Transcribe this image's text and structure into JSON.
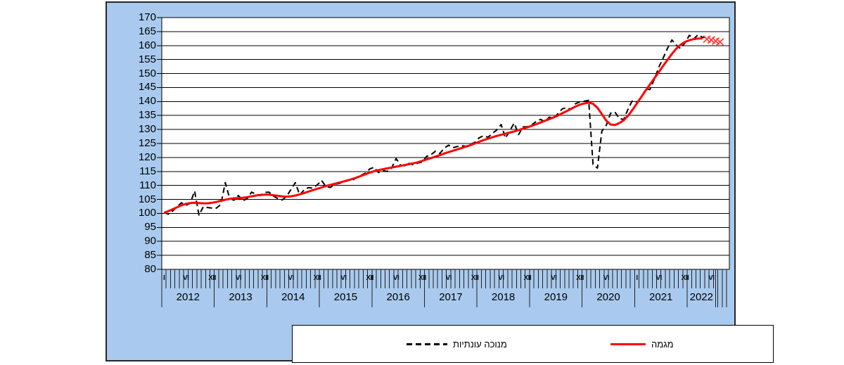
{
  "colors": {
    "chart_background": "#a9caee",
    "plot_background": "#ffffff",
    "grid": "#000000",
    "axis": "#000000",
    "seasonal_line": "#000000",
    "trend_line": "#ff0000",
    "forecast_marker": "#ff4040"
  },
  "legend": {
    "items": [
      {
        "label": "מנוכה עונתיות",
        "line_style": "dashed",
        "color": "#000000"
      },
      {
        "label": "מגמה",
        "line_style": "solid",
        "color": "#ff0000"
      }
    ]
  },
  "chart_data": {
    "type": "line",
    "title": "",
    "xlabel": "",
    "ylabel": "",
    "ylim": [
      80,
      170
    ],
    "ytick_step": 5,
    "grid": true,
    "y_tick_labels": [
      "170",
      "165",
      "160",
      "155",
      "150",
      "145",
      "140",
      "135",
      "130",
      "125",
      "120",
      "115",
      "110",
      "105",
      "100",
      "95",
      "90",
      "85",
      "80"
    ],
    "x_axis": {
      "unit": "month",
      "start": "I-2012",
      "month_tick_count": 130,
      "month_labels": [
        {
          "m": 0,
          "t": "I"
        },
        {
          "m": 5,
          "t": "VI"
        },
        {
          "m": 11,
          "t": "XII"
        },
        {
          "m": 17,
          "t": "VI"
        },
        {
          "m": 23,
          "t": "XII"
        },
        {
          "m": 29,
          "t": "VI"
        },
        {
          "m": 35,
          "t": "XII"
        },
        {
          "m": 41,
          "t": "VI"
        },
        {
          "m": 47,
          "t": "XII"
        },
        {
          "m": 53,
          "t": "VI"
        },
        {
          "m": 59,
          "t": "XII"
        },
        {
          "m": 65,
          "t": "VI"
        },
        {
          "m": 71,
          "t": "XII"
        },
        {
          "m": 77,
          "t": "VI"
        },
        {
          "m": 83,
          "t": "XII"
        },
        {
          "m": 89,
          "t": "VI"
        },
        {
          "m": 95,
          "t": "XII"
        },
        {
          "m": 101,
          "t": "VI"
        },
        {
          "m": 108,
          "t": "I"
        },
        {
          "m": 113,
          "t": "VI"
        },
        {
          "m": 119,
          "t": "XII"
        },
        {
          "m": 125,
          "t": "VI"
        }
      ],
      "year_bands": [
        {
          "label": "2012",
          "from": 0,
          "to": 12
        },
        {
          "label": "2013",
          "from": 12,
          "to": 24
        },
        {
          "label": "2014",
          "from": 24,
          "to": 36
        },
        {
          "label": "2015",
          "from": 36,
          "to": 48
        },
        {
          "label": "2016",
          "from": 48,
          "to": 60
        },
        {
          "label": "2017",
          "from": 60,
          "to": 72
        },
        {
          "label": "2018",
          "from": 72,
          "to": 84
        },
        {
          "label": "2019",
          "from": 84,
          "to": 96
        },
        {
          "label": "2020",
          "from": 96,
          "to": 108
        },
        {
          "label": "2021",
          "from": 108,
          "to": 120
        },
        {
          "label": "2022",
          "from": 120,
          "to": 126.5
        }
      ],
      "trailing_full_ticks": [
        127,
        128,
        129
      ]
    },
    "series": [
      {
        "name": "מנוכה עונתיות",
        "style": "dashed",
        "color": "#000000",
        "start_month_index": 0,
        "values": [
          100.4,
          99.7,
          100.9,
          102.4,
          103.8,
          102.9,
          103.6,
          108.0,
          99.4,
          102.4,
          102.1,
          101.9,
          101.9,
          103.2,
          111.0,
          105.4,
          104.7,
          106.4,
          104.5,
          105.3,
          107.6,
          106.9,
          106.4,
          107.5,
          107.6,
          106.2,
          105.3,
          104.8,
          106.1,
          108.5,
          111.0,
          106.6,
          108.4,
          109.2,
          109.0,
          110.2,
          111.8,
          109.6,
          109.3,
          110.4,
          110.7,
          111.3,
          112.0,
          111.7,
          112.9,
          113.6,
          114.4,
          115.9,
          116.5,
          114.6,
          115.3,
          115.0,
          116.2,
          119.6,
          117.3,
          117.0,
          117.9,
          117.3,
          118.0,
          118.4,
          120.4,
          121.0,
          122.2,
          121.4,
          123.3,
          124.4,
          123.5,
          123.9,
          124.2,
          124.0,
          124.7,
          125.4,
          127.0,
          127.8,
          127.2,
          128.6,
          129.8,
          131.8,
          126.9,
          129.6,
          132.3,
          128.2,
          130.9,
          131.0,
          131.6,
          132.9,
          133.6,
          132.8,
          134.4,
          134.0,
          135.7,
          137.4,
          137.8,
          137.2,
          139.2,
          139.9,
          140.1,
          140.4,
          117.5,
          116.2,
          129.4,
          131.4,
          135.8,
          136.2,
          133.9,
          133.6,
          137.3,
          140.4,
          139.8,
          141.3,
          144.5,
          144.3,
          148.0,
          152.2,
          155.5,
          159.0,
          162.0,
          160.2,
          158.9,
          161.0,
          163.7,
          162.4,
          163.9,
          162.9,
          163.0
        ]
      },
      {
        "name": "מגמה",
        "style": "solid",
        "color": "#ff0000",
        "start_month_index": 0,
        "values": [
          100.2,
          100.8,
          101.5,
          102.2,
          102.9,
          103.4,
          103.7,
          103.8,
          103.7,
          103.6,
          103.6,
          103.8,
          104.1,
          104.5,
          104.9,
          105.2,
          105.4,
          105.5,
          105.6,
          105.8,
          106.1,
          106.4,
          106.6,
          106.7,
          106.7,
          106.5,
          106.3,
          106.1,
          106.0,
          106.1,
          106.4,
          106.8,
          107.3,
          107.8,
          108.3,
          108.8,
          109.3,
          109.8,
          110.2,
          110.6,
          111.0,
          111.4,
          111.8,
          112.3,
          112.8,
          113.4,
          114.0,
          114.6,
          115.1,
          115.5,
          115.8,
          116.1,
          116.4,
          116.7,
          117.0,
          117.3,
          117.6,
          117.9,
          118.3,
          118.8,
          119.3,
          119.8,
          120.3,
          120.8,
          121.4,
          121.9,
          122.4,
          122.9,
          123.4,
          123.9,
          124.4,
          125.0,
          125.6,
          126.2,
          126.7,
          127.2,
          127.7,
          128.1,
          128.5,
          128.9,
          129.3,
          129.8,
          130.3,
          130.8,
          131.3,
          131.9,
          132.5,
          133.1,
          133.7,
          134.3,
          135.0,
          135.8,
          136.6,
          137.4,
          138.2,
          138.9,
          139.3,
          139.6,
          139.2,
          137.8,
          135.5,
          133.2,
          131.8,
          131.6,
          132.3,
          133.3,
          134.9,
          137.0,
          139.3,
          141.6,
          143.9,
          146.1,
          148.3,
          150.5,
          152.7,
          154.9,
          157.0,
          158.9,
          160.3,
          161.3,
          161.9,
          162.3,
          162.5,
          162.5
        ]
      }
    ],
    "trend_forecast_markers": {
      "marker": "x",
      "color": "#ff4040",
      "start_month_index": 124,
      "values": [
        162.3,
        162.0,
        161.6,
        161.3
      ]
    },
    "legend_position": "bottom"
  }
}
